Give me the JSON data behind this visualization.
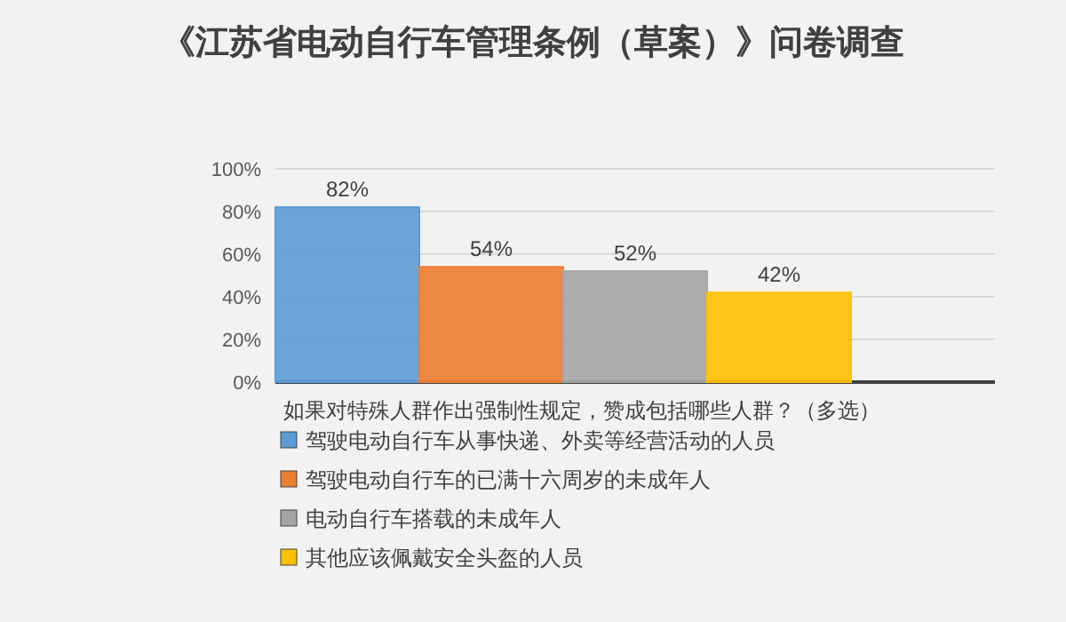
{
  "chart_data": {
    "type": "bar",
    "title": "《江苏省电动自行车管理条例（草案）》问卷调查",
    "xlabel": "如果对特殊人群作出强制性规定，赞成包括哪些人群？（多选）",
    "categories": [
      null
    ],
    "series": [
      {
        "name": "驾驶电动自行车从事快递、外卖等经营活动的人员",
        "color": "#5b9bd5",
        "values": [
          82
        ],
        "value_labels": [
          "82%"
        ]
      },
      {
        "name": "驾驶电动自行车的已满十六周岁的未成年人",
        "color": "#ed7d31",
        "values": [
          54
        ],
        "value_labels": [
          "54%"
        ]
      },
      {
        "name": "电动自行车搭载的未成年人",
        "color": "#a5a5a5",
        "values": [
          52
        ],
        "value_labels": [
          "52%"
        ]
      },
      {
        "name": "其他应该佩戴安全头盔的人员",
        "color": "#ffc000",
        "values": [
          42
        ],
        "value_labels": [
          "42%"
        ]
      }
    ],
    "ylim": [
      0,
      100
    ],
    "yticks": [
      {
        "value": 0,
        "label": "0%"
      },
      {
        "value": 20,
        "label": "20%"
      },
      {
        "value": 40,
        "label": "40%"
      },
      {
        "value": 60,
        "label": "60%"
      },
      {
        "value": 80,
        "label": "80%"
      },
      {
        "value": 100,
        "label": "100%"
      }
    ],
    "grid": "y",
    "legend": "bottom"
  }
}
